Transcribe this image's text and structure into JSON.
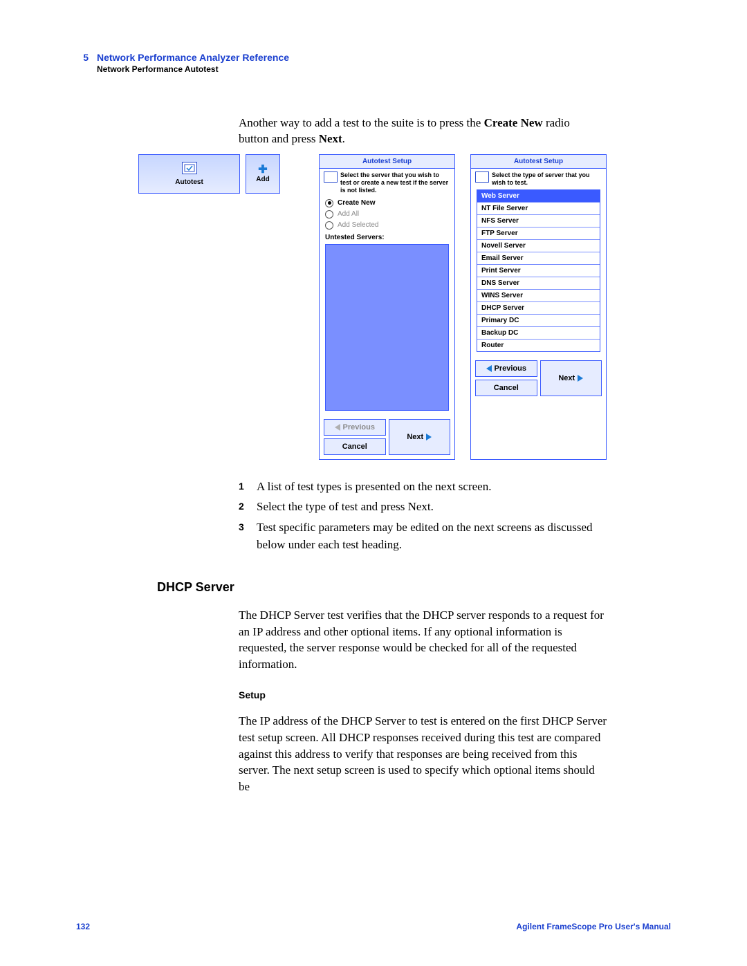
{
  "header": {
    "chapter_number": "5",
    "chapter_title": "Network Performance Analyzer Reference",
    "section": "Network Performance Autotest"
  },
  "intro": {
    "pre": "Another way to add a test to the suite is to press the ",
    "bold1": "Create New",
    "mid": " radio button and press ",
    "bold2": "Next",
    "post": "."
  },
  "tiles": {
    "autotest_label": "Autotest",
    "add_label": "Add"
  },
  "panel1": {
    "title": "Autotest Setup",
    "instruction": "Select the server that you wish to test or create a new test if the server is not listed.",
    "radios": {
      "create_new": "Create New",
      "add_all": "Add All",
      "add_selected": "Add Selected"
    },
    "untested_label": "Untested Servers:",
    "buttons": {
      "previous": "Previous",
      "next": "Next",
      "cancel": "Cancel"
    }
  },
  "panel2": {
    "title": "Autotest Setup",
    "instruction": "Select the type of server that you wish to test.",
    "servers": [
      "Web Server",
      "NT File Server",
      "NFS Server",
      "FTP Server",
      "Novell Server",
      "Email Server",
      "Print Server",
      "DNS Server",
      "WINS Server",
      "DHCP Server",
      "Primary DC",
      "Backup DC",
      "Router"
    ],
    "selected_index": 0,
    "buttons": {
      "previous": "Previous",
      "next": "Next",
      "cancel": "Cancel"
    }
  },
  "steps": [
    "A list of test types is presented on the next screen.",
    "Select the type of test and press Next.",
    "Test specific parameters may be edited on the next screens as discussed below under each test heading."
  ],
  "dhcp": {
    "heading": "DHCP Server",
    "para": "The DHCP Server test verifies that the DHCP server responds to a request for an IP address and other optional items. If any optional information is requested, the server response would be checked for all of the requested information.",
    "setup_heading": "Setup",
    "setup_para": "The IP address of the DHCP Server to test is entered on the first DHCP Server test setup screen. All DHCP responses received during this test are compared against this address to verify that responses are being received from this server. The next setup screen is used to specify which optional items should be"
  },
  "footer": {
    "page_number": "132",
    "manual_title": "Agilent FrameScope Pro User's Manual"
  },
  "colors": {
    "brand_blue": "#1a3fcf",
    "panel_border": "#3a5aff",
    "panel_fill": "#e6ecff",
    "list_fill": "#7a8fff"
  }
}
